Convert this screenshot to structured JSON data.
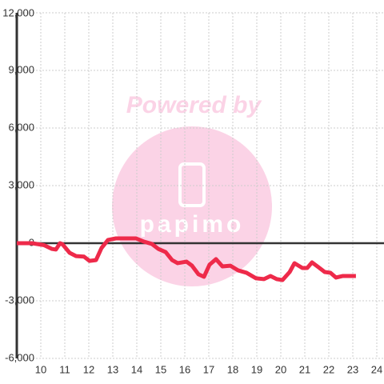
{
  "chart_data": {
    "type": "line",
    "annotations": [
      "Powered by",
      "papimo"
    ],
    "x": [
      9.0,
      9.63,
      10.13,
      10.47,
      10.63,
      10.8,
      10.9,
      11.2,
      11.47,
      11.8,
      12.03,
      12.3,
      12.53,
      12.8,
      13.13,
      13.97,
      14.3,
      14.63,
      14.9,
      15.2,
      15.47,
      15.7,
      16.07,
      16.3,
      16.57,
      16.8,
      17.03,
      17.3,
      17.57,
      17.9,
      18.23,
      18.57,
      18.97,
      19.3,
      19.57,
      19.83,
      20.07,
      20.37,
      20.57,
      20.9,
      21.1,
      21.3,
      21.57,
      21.83,
      22.07,
      22.3,
      22.57,
      23.13
    ],
    "series": [
      {
        "color": "#ee2a4a",
        "values": [
          0,
          0,
          -100,
          -300,
          -330,
          0,
          -50,
          -500,
          -670,
          -700,
          -920,
          -880,
          -250,
          170,
          250,
          250,
          80,
          -40,
          -300,
          -460,
          -880,
          -1040,
          -960,
          -1170,
          -1620,
          -1750,
          -1120,
          -830,
          -1210,
          -1170,
          -1420,
          -1540,
          -1830,
          -1870,
          -1710,
          -1870,
          -1920,
          -1500,
          -1040,
          -1290,
          -1290,
          -1000,
          -1250,
          -1500,
          -1540,
          -1790,
          -1710,
          -1710
        ]
      }
    ],
    "xlim": [
      9,
      24.3
    ],
    "xticks": [
      10,
      11,
      12,
      13,
      14,
      15,
      16,
      17,
      18,
      19,
      20,
      21,
      22,
      23,
      24
    ],
    "ylim": [
      -6000,
      12000
    ],
    "yticks": [
      {
        "value": -6000,
        "label": "-6,000"
      },
      {
        "value": -3000,
        "label": "-3,000"
      },
      0,
      {
        "value": 3000,
        "label": "3,000"
      },
      {
        "value": 6000,
        "label": "6,000"
      },
      {
        "value": 9000,
        "label": "9,000"
      },
      {
        "value": 12000,
        "label": "12,000"
      }
    ],
    "grid": true
  }
}
